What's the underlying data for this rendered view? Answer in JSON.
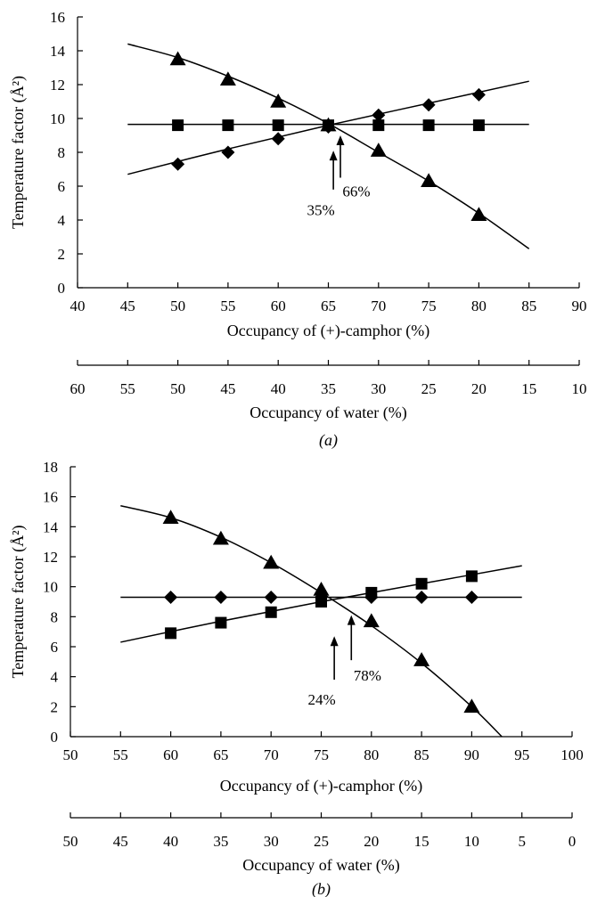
{
  "chart_data": [
    {
      "type": "scatter",
      "panel_label": "(a)",
      "ylabel": "Temperature factor (Å²)",
      "xlabel": "Occupancy of (+)-camphor (%)",
      "xlim": [
        40,
        90
      ],
      "ylim": [
        0,
        16
      ],
      "xticks": [
        "40",
        "45",
        "50",
        "55",
        "60",
        "65",
        "70",
        "75",
        "80",
        "85",
        "90"
      ],
      "yticks": [
        "0",
        "2",
        "4",
        "6",
        "8",
        "10",
        "12",
        "14",
        "16"
      ],
      "secondary_axis": {
        "label": "Occupancy of water (%)",
        "ticks": [
          "60",
          "55",
          "50",
          "45",
          "40",
          "35",
          "30",
          "25",
          "20",
          "15",
          "10"
        ]
      },
      "series": [
        {
          "marker": "triangle",
          "x": [
            50,
            55,
            60,
            65,
            70,
            75,
            80
          ],
          "y": [
            13.5,
            12.3,
            11.0,
            9.6,
            8.1,
            6.3,
            4.3
          ],
          "fit": {
            "x": [
              45,
              50,
              55,
              60,
              65,
              70,
              75,
              80,
              85
            ],
            "y": [
              14.4,
              13.6,
              12.5,
              11.2,
              9.7,
              8.0,
              6.3,
              4.4,
              2.3
            ]
          }
        },
        {
          "marker": "square",
          "x": [
            50,
            55,
            60,
            65,
            70,
            75,
            80
          ],
          "y": [
            9.6,
            9.6,
            9.6,
            9.6,
            9.6,
            9.6,
            9.6
          ],
          "fit": {
            "x": [
              45,
              85
            ],
            "y": [
              9.65,
              9.65
            ]
          }
        },
        {
          "marker": "diamond",
          "x": [
            50,
            55,
            60,
            65,
            70,
            75,
            80
          ],
          "y": [
            7.3,
            8.0,
            8.8,
            9.5,
            10.2,
            10.8,
            11.4
          ],
          "fit": {
            "x": [
              45,
              55,
              65,
              75,
              85
            ],
            "y": [
              6.7,
              8.2,
              9.6,
              10.9,
              12.2
            ]
          }
        }
      ],
      "annotations": [
        {
          "text": "35%",
          "arrow_x": 65.5,
          "arrow_y": [
            8.1,
            5.8
          ],
          "label_y": 4.6
        },
        {
          "text": "66%",
          "arrow_x": 66.2,
          "arrow_y": [
            9.0,
            6.5
          ],
          "label_y": 5.7
        }
      ]
    },
    {
      "type": "scatter",
      "panel_label": "(b)",
      "ylabel": "Temperature factor (Å²)",
      "xlabel": "Occupancy of (+)-camphor (%)",
      "xlim": [
        50,
        100
      ],
      "ylim": [
        0,
        18
      ],
      "xticks": [
        "50",
        "55",
        "60",
        "65",
        "70",
        "75",
        "80",
        "85",
        "90",
        "95",
        "100"
      ],
      "yticks": [
        "0",
        "2",
        "4",
        "6",
        "8",
        "10",
        "12",
        "14",
        "16",
        "18"
      ],
      "secondary_axis": {
        "label": "Occupancy of water (%)",
        "ticks": [
          "50",
          "45",
          "40",
          "35",
          "30",
          "25",
          "20",
          "15",
          "10",
          "5",
          "0"
        ]
      },
      "series": [
        {
          "marker": "triangle",
          "x": [
            60,
            65,
            70,
            75,
            80,
            85,
            90
          ],
          "y": [
            14.6,
            13.2,
            11.6,
            9.8,
            7.7,
            5.1,
            2.0
          ],
          "fit": {
            "x": [
              55,
              60,
              65,
              70,
              75,
              80,
              85,
              90,
              93
            ],
            "y": [
              15.4,
              14.6,
              13.3,
              11.6,
              9.6,
              7.4,
              4.9,
              2.0,
              0.0
            ]
          }
        },
        {
          "marker": "square",
          "x": [
            60,
            65,
            70,
            75,
            80,
            85,
            90
          ],
          "y": [
            6.9,
            7.6,
            8.3,
            9.0,
            9.6,
            10.2,
            10.7
          ],
          "fit": {
            "x": [
              55,
              65,
              75,
              85,
              95
            ],
            "y": [
              6.3,
              7.7,
              9.0,
              10.2,
              11.4
            ]
          }
        },
        {
          "marker": "diamond",
          "x": [
            60,
            65,
            70,
            75,
            80,
            85,
            90
          ],
          "y": [
            9.3,
            9.3,
            9.3,
            9.3,
            9.3,
            9.3,
            9.3
          ],
          "fit": {
            "x": [
              55,
              95
            ],
            "y": [
              9.3,
              9.3
            ]
          }
        }
      ],
      "annotations": [
        {
          "text": "24%",
          "arrow_x": 76.3,
          "arrow_y": [
            3.8,
            6.7
          ],
          "label_y": 2.5
        },
        {
          "text": "78%",
          "arrow_x": 78.0,
          "arrow_y": [
            5.1,
            8.1
          ],
          "label_y": 4.1
        }
      ]
    }
  ]
}
